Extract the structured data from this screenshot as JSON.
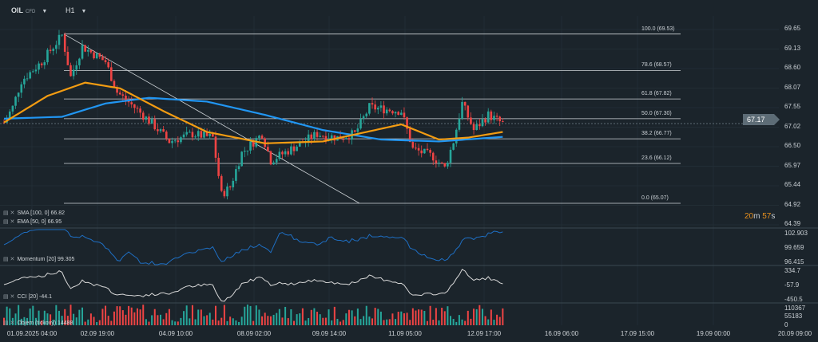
{
  "header": {
    "symbol": "OIL",
    "symbol_type": "CFD",
    "timeframe": "H1"
  },
  "fib_levels": [
    {
      "label": "100.0 (69.53)",
      "price": 69.53
    },
    {
      "label": "78.6 (68.57)",
      "price": 68.57
    },
    {
      "label": "61.8 (67.82)",
      "price": 67.82
    },
    {
      "label": "50.0 (67.30)",
      "price": 67.3
    },
    {
      "label": "38.2 (66.77)",
      "price": 66.77
    },
    {
      "label": "23.6 (66.12)",
      "price": 66.12
    },
    {
      "label": "0.0 (65.07)",
      "price": 65.07
    }
  ],
  "price_axis": [
    "69.65",
    "69.13",
    "68.60",
    "68.07",
    "67.55",
    "67.02",
    "66.50",
    "65.97",
    "65.44",
    "64.92",
    "64.39"
  ],
  "current_price": "67.17",
  "timer": {
    "min": "20",
    "m": "m",
    "sec": "57",
    "s": "s"
  },
  "legends": {
    "sma": "SMA [100, 0] 66.82",
    "ema": "EMA [50, 0] 66.95",
    "momentum": "Momentum [20] 99.305",
    "cci": "CCI [20] -44.1",
    "volume": "Objem (tickový) 14488"
  },
  "momentum_axis": [
    "102.903",
    "99.659",
    "96.415"
  ],
  "cci_axis": [
    "334.7",
    "-57.9",
    "-450.5"
  ],
  "volume_axis": [
    "110367",
    "55183",
    "0"
  ],
  "x_axis": [
    "01.09.2025 04:00",
    "02.09 19:00",
    "04.09 10:00",
    "08.09 02:00",
    "09.09 14:00",
    "11.09 05:00",
    "12.09 17:00",
    "16.09 06:00",
    "17.09 15:00",
    "19.09 00:00",
    "20.09 09:00"
  ],
  "colors": {
    "up": "#26a69a",
    "down": "#ef4444",
    "sma": "#2196f3",
    "ema": "#f39c12",
    "momentum": "#1e6fc4",
    "cci": "#d8d8d8"
  },
  "chart_data": {
    "type": "candlestick",
    "ylim": [
      64.39,
      69.65
    ],
    "price_path": [
      [
        0,
        67.2
      ],
      [
        3,
        67.6
      ],
      [
        6,
        68.3
      ],
      [
        13,
        68.8
      ],
      [
        20,
        69.5
      ],
      [
        23,
        68.4
      ],
      [
        27,
        69.2
      ],
      [
        35,
        68.8
      ],
      [
        39,
        68.0
      ],
      [
        45,
        67.6
      ],
      [
        52,
        67.1
      ],
      [
        57,
        66.7
      ],
      [
        65,
        66.9
      ],
      [
        72,
        66.8
      ],
      [
        75,
        65.3
      ],
      [
        78,
        65.5
      ],
      [
        82,
        66.4
      ],
      [
        89,
        66.9
      ],
      [
        92,
        66.2
      ],
      [
        99,
        66.5
      ],
      [
        108,
        66.9
      ],
      [
        115,
        66.8
      ],
      [
        121,
        66.9
      ],
      [
        126,
        67.6
      ],
      [
        137,
        67.5
      ],
      [
        141,
        66.5
      ],
      [
        148,
        66.3
      ],
      [
        152,
        66.0
      ],
      [
        155,
        66.7
      ],
      [
        158,
        67.7
      ],
      [
        162,
        67.0
      ],
      [
        167,
        67.4
      ],
      [
        172,
        67.17
      ]
    ],
    "sma": [
      [
        0,
        67.3
      ],
      [
        20,
        67.35
      ],
      [
        35,
        67.7
      ],
      [
        50,
        67.85
      ],
      [
        70,
        67.75
      ],
      [
        90,
        67.4
      ],
      [
        110,
        67.0
      ],
      [
        130,
        66.75
      ],
      [
        150,
        66.7
      ],
      [
        172,
        66.82
      ]
    ],
    "ema": [
      [
        0,
        67.2
      ],
      [
        15,
        67.9
      ],
      [
        28,
        68.25
      ],
      [
        40,
        68.1
      ],
      [
        55,
        67.5
      ],
      [
        70,
        66.95
      ],
      [
        90,
        66.65
      ],
      [
        110,
        66.7
      ],
      [
        125,
        66.95
      ],
      [
        137,
        67.15
      ],
      [
        150,
        66.75
      ],
      [
        160,
        66.8
      ],
      [
        172,
        66.95
      ]
    ]
  }
}
